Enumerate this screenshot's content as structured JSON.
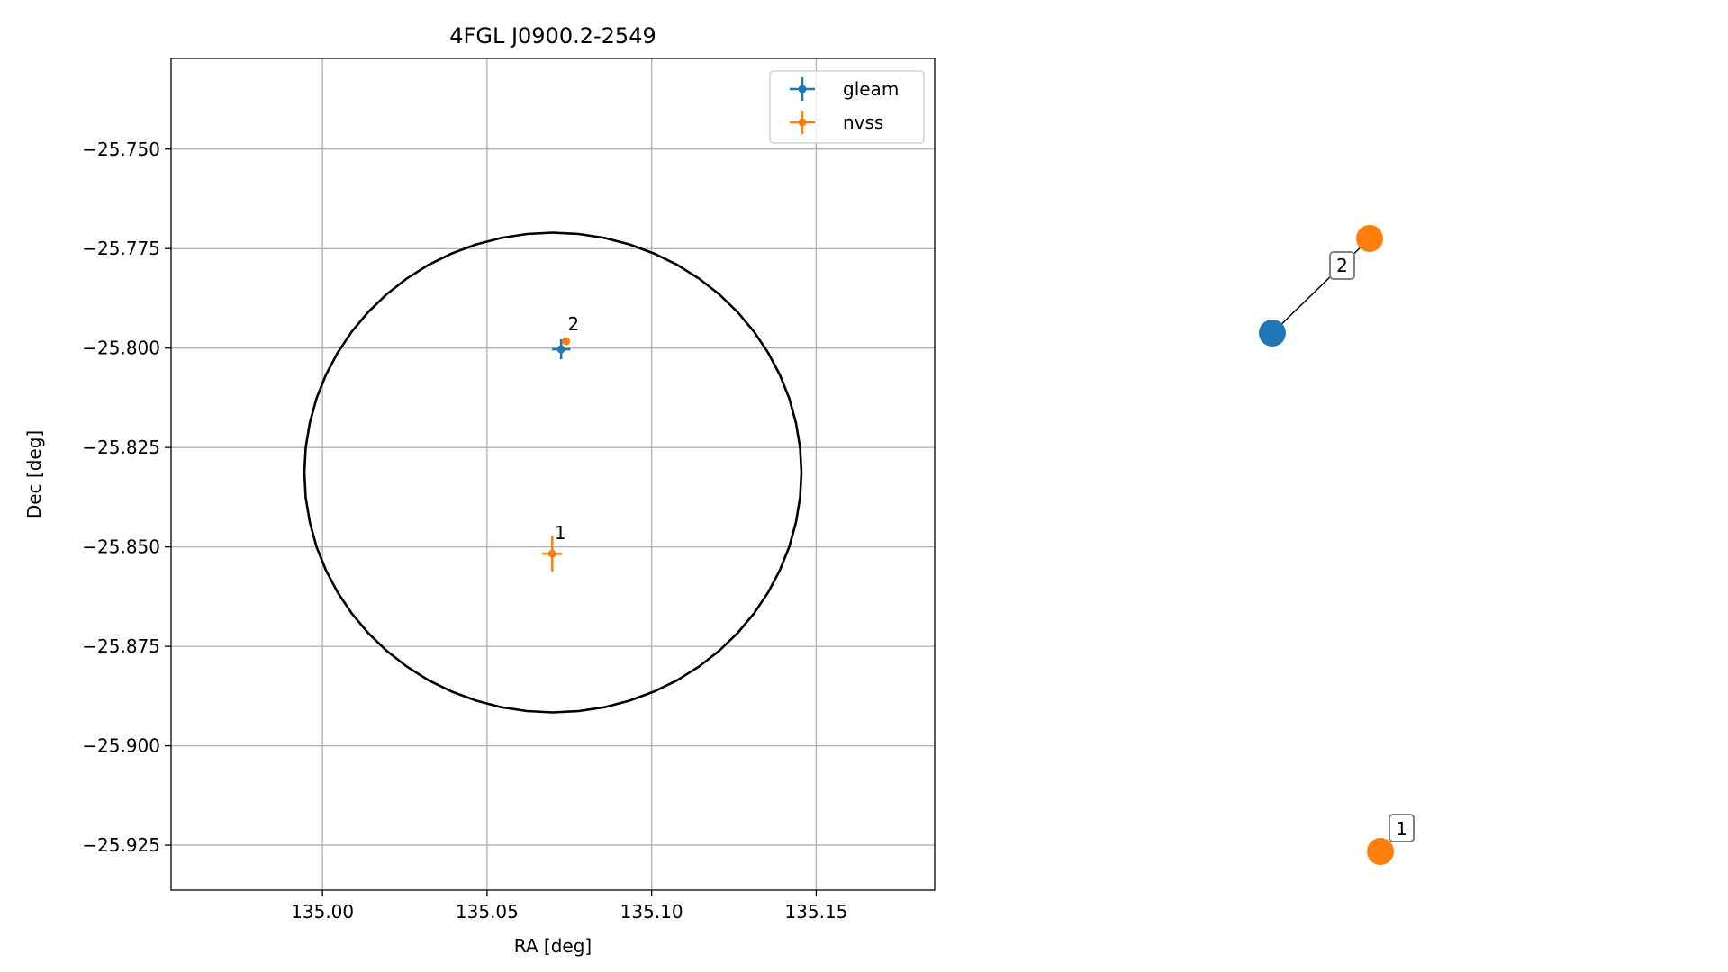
{
  "chart_data": [
    {
      "type": "scatter",
      "title": "4FGL J0900.2-2549",
      "xlabel": "RA [deg]",
      "ylabel": "Dec [deg]",
      "xlim": [
        134.954,
        135.186
      ],
      "ylim": [
        -25.9363,
        -25.7272
      ],
      "xticks": [
        135.0,
        135.05,
        135.1,
        135.15
      ],
      "xtick_labels": [
        "135.00",
        "135.05",
        "135.10",
        "135.15"
      ],
      "yticks": [
        -25.75,
        -25.775,
        -25.8,
        -25.825,
        -25.85,
        -25.875,
        -25.9,
        -25.925
      ],
      "ytick_labels": [
        "−25.750",
        "−25.775",
        "−25.800",
        "−25.825",
        "−25.850",
        "−25.875",
        "−25.900",
        "−25.925"
      ],
      "grid": true,
      "legend_position": "top-right",
      "colors": {
        "gleam": "#1f77b4",
        "nvss": "#ff7f0e",
        "ellipse": "#000000",
        "grid": "#b0b0b0"
      },
      "ellipse": {
        "center": [
          135.07,
          -25.8313
        ],
        "semi_ra": 0.0755,
        "semi_dec": 0.0603
      },
      "series": [
        {
          "name": "gleam",
          "color": "#1f77b4",
          "points": [
            {
              "x": 135.0725,
              "y": -25.8003,
              "xerr": 0.0028,
              "yerr": 0.0025
            }
          ]
        },
        {
          "name": "nvss",
          "color": "#ff7f0e",
          "points": [
            {
              "x": 135.0698,
              "y": -25.8517,
              "xerr": 0.003,
              "yerr": 0.0045
            },
            {
              "x": 135.074,
              "y": -25.7983,
              "xerr": 0.0,
              "yerr": 0.0
            }
          ]
        }
      ],
      "annotations": [
        {
          "text": "2",
          "x": 135.0745,
          "y": -25.7955
        },
        {
          "text": "1",
          "x": 135.0705,
          "y": -25.848
        }
      ]
    },
    {
      "type": "network",
      "nodes": [
        {
          "id": "gleam-2",
          "color": "#1f77b4"
        },
        {
          "id": "nvss-2",
          "color": "#ff7f0e"
        },
        {
          "id": "nvss-1",
          "color": "#ff7f0e"
        }
      ],
      "edges": [
        {
          "source": "gleam-2",
          "target": "nvss-2",
          "label": "2"
        }
      ],
      "labels": [
        {
          "node": "nvss-1",
          "text": "1"
        }
      ]
    }
  ]
}
